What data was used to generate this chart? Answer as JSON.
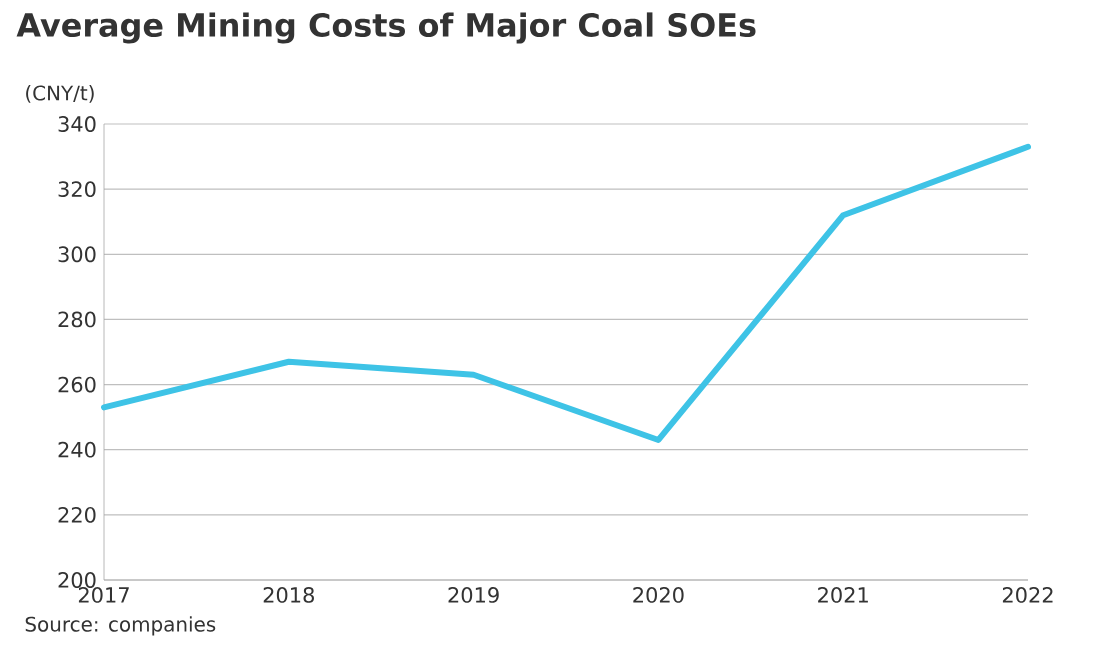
{
  "chart_data": {
    "type": "line",
    "title": "Average Mining Costs of Major Coal SOEs",
    "ylabel": "(CNY/t)",
    "categories": [
      "2017",
      "2018",
      "2019",
      "2020",
      "2021",
      "2022"
    ],
    "series": [
      {
        "color": "#3ec3e6",
        "values": [
          253,
          267,
          263,
          243,
          312,
          333
        ]
      }
    ],
    "ylim": [
      200,
      340
    ],
    "yticks": [
      200,
      220,
      240,
      260,
      280,
      300,
      320,
      340
    ],
    "grid": "y",
    "legend": false,
    "marker": "none",
    "line_style": "solid",
    "annotations": [
      "Source: companies"
    ]
  }
}
